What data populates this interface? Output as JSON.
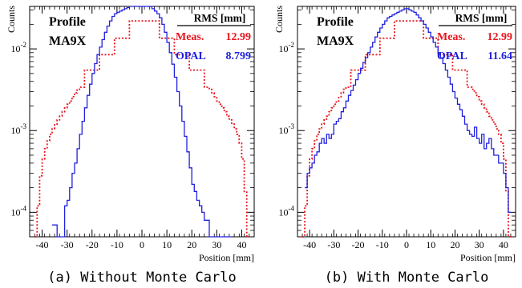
{
  "chart_data": [
    {
      "type": "line",
      "panel_caption": "(a) Without Monte Carlo",
      "profile_title": "Profile",
      "profile_name": "MA9X",
      "ylabel": "Counts",
      "xlabel": "Position [mm]",
      "xlim": [
        -45,
        45
      ],
      "ylim_log10": [
        -4.3,
        -1.48
      ],
      "y_scale": "log",
      "x_ticks": [
        "-40",
        "-30",
        "-20",
        "-10",
        "0",
        "10",
        "20",
        "30",
        "40"
      ],
      "x_tick_values": [
        -40,
        -30,
        -20,
        -10,
        0,
        10,
        20,
        30,
        40
      ],
      "y_ticks": [
        {
          "base": "10",
          "exp": "-2",
          "log10": -2
        },
        {
          "base": "10",
          "exp": "-3",
          "log10": -3
        },
        {
          "base": "10",
          "exp": "-4",
          "log10": -4
        }
      ],
      "legend": {
        "header": "RMS [mm]",
        "entries": [
          {
            "name": "Meas.",
            "value": "12.99",
            "color": "#e8141c"
          },
          {
            "name": "OPAL",
            "value": "8.799",
            "color": "#2020e0"
          }
        ]
      },
      "series": [
        {
          "name": "Meas.",
          "color": "#e8141c",
          "style": "dotted-step",
          "x": [
            -42.5,
            -41.5,
            -40.5,
            -39.5,
            -38.5,
            -37.5,
            -36.5,
            -35.5,
            -34.5,
            -33.5,
            -32.5,
            -31.5,
            -30.5,
            -29.5,
            -28.5,
            -27.5,
            -26.5,
            -25.5,
            -24.5,
            -23.5,
            -22.5,
            -21.5,
            -20.5,
            -19.5,
            -18.5,
            -17.5,
            -16.5,
            -15.5,
            -14.5,
            -13.5,
            -12.5,
            -11.5,
            -10.5,
            -9.5,
            -8.5,
            -7.5,
            -6.5,
            -5.5,
            -4.5,
            -3.5,
            -2.5,
            -1.5,
            -0.5,
            0.5,
            1.5,
            2.5,
            3.5,
            4.5,
            5.5,
            6.5,
            7.5,
            8.5,
            9.5,
            10.5,
            11.5,
            12.5,
            13.5,
            14.5,
            15.5,
            16.5,
            17.5,
            18.5,
            19.5,
            20.5,
            21.5,
            22.5,
            23.5,
            24.5,
            25.5,
            26.5,
            27.5,
            28.5,
            29.5,
            30.5,
            31.5,
            32.5,
            33.5,
            34.5,
            35.5,
            36.5,
            37.5,
            38.5,
            39.5,
            40.5,
            41.5,
            42.5
          ],
          "y": [
            5e-05,
            0.00012,
            0.00028,
            0.00045,
            0.0006,
            0.00075,
            0.0009,
            0.00105,
            0.0012,
            0.00135,
            0.0015,
            0.0017,
            0.0019,
            0.0021,
            0.0023,
            0.0026,
            0.0029,
            0.0032,
            0.0034,
            0.0034,
            0.0055,
            0.0055,
            0.0055,
            0.0055,
            0.0055,
            0.0055,
            0.0085,
            0.0085,
            0.0085,
            0.0085,
            0.0085,
            0.0085,
            0.0135,
            0.0135,
            0.0135,
            0.0135,
            0.0135,
            0.0135,
            0.022,
            0.022,
            0.022,
            0.022,
            0.022,
            0.022,
            0.022,
            0.022,
            0.022,
            0.022,
            0.022,
            0.022,
            0.0135,
            0.0135,
            0.0135,
            0.0135,
            0.0135,
            0.0135,
            0.0085,
            0.0085,
            0.0085,
            0.0085,
            0.0085,
            0.0085,
            0.0055,
            0.0055,
            0.0055,
            0.0055,
            0.0055,
            0.0055,
            0.0034,
            0.0034,
            0.0032,
            0.0029,
            0.0026,
            0.0023,
            0.0021,
            0.0019,
            0.0017,
            0.0015,
            0.00135,
            0.0012,
            0.00105,
            0.0009,
            0.0007,
            0.00045,
            0.00018,
            5e-05
          ]
        },
        {
          "name": "OPAL",
          "color": "#2020e0",
          "style": "solid-step",
          "x": [
            -35.5,
            -34.5,
            -33.5,
            -32.5,
            -31.5,
            -30.5,
            -29.5,
            -28.5,
            -27.5,
            -26.5,
            -25.5,
            -24.5,
            -23.5,
            -22.5,
            -21.5,
            -20.5,
            -19.5,
            -18.5,
            -17.5,
            -16.5,
            -15.5,
            -14.5,
            -13.5,
            -12.5,
            -11.5,
            -10.5,
            -9.5,
            -8.5,
            -7.5,
            -6.5,
            -5.5,
            -4.5,
            -3.5,
            -2.5,
            -1.5,
            -0.5,
            0.5,
            1.5,
            2.5,
            3.5,
            4.5,
            5.5,
            6.5,
            7.5,
            8.5,
            9.5,
            10.5,
            11.5,
            12.5,
            13.5,
            14.5,
            15.5,
            16.5,
            17.5,
            18.5,
            19.5,
            20.5,
            21.5,
            22.5,
            23.5,
            24.5,
            25.5,
            26.5,
            27.5,
            28.5,
            29.5,
            30.5,
            31.5,
            32.5,
            33.5,
            34.5,
            35.5
          ],
          "y": [
            7e-05,
            7e-05,
            5e-05,
            5e-05,
            5e-05,
            0.00012,
            0.00014,
            0.0002,
            0.0003,
            0.0004,
            0.0006,
            0.0009,
            0.0013,
            0.0019,
            0.0027,
            0.0037,
            0.005,
            0.0066,
            0.0085,
            0.0105,
            0.013,
            0.016,
            0.019,
            0.022,
            0.025,
            0.027,
            0.028,
            0.029,
            0.03,
            0.031,
            0.032,
            0.034,
            0.034,
            0.035,
            0.035,
            0.036,
            0.036,
            0.035,
            0.034,
            0.033,
            0.031,
            0.029,
            0.027,
            0.024,
            0.02,
            0.016,
            0.012,
            0.009,
            0.0065,
            0.0045,
            0.003,
            0.002,
            0.0013,
            0.00085,
            0.00055,
            0.00035,
            0.00022,
            0.00018,
            0.00014,
            0.00012,
            0.0001,
            8e-05,
            8e-05,
            5e-05,
            5e-05,
            5e-05,
            5e-05,
            5e-05,
            5e-05,
            5e-05,
            5e-05,
            5e-05
          ]
        }
      ]
    },
    {
      "type": "line",
      "panel_caption": "(b) With Monte Carlo",
      "profile_title": "Profile",
      "profile_name": "MA9X",
      "ylabel": "Counts",
      "xlabel": "Position [mm]",
      "xlim": [
        -45,
        45
      ],
      "ylim_log10": [
        -4.3,
        -1.48
      ],
      "y_scale": "log",
      "x_ticks": [
        "-40",
        "-30",
        "-20",
        "-10",
        "0",
        "10",
        "20",
        "30",
        "40"
      ],
      "x_tick_values": [
        -40,
        -30,
        -20,
        -10,
        0,
        10,
        20,
        30,
        40
      ],
      "y_ticks": [
        {
          "base": "10",
          "exp": "-2",
          "log10": -2
        },
        {
          "base": "10",
          "exp": "-3",
          "log10": -3
        },
        {
          "base": "10",
          "exp": "-4",
          "log10": -4
        }
      ],
      "legend": {
        "header": "RMS [mm]",
        "entries": [
          {
            "name": "Meas.",
            "value": "12.99",
            "color": "#e8141c"
          },
          {
            "name": "OPAL",
            "value": "11.64",
            "color": "#2020e0"
          }
        ]
      },
      "series": [
        {
          "name": "Meas.",
          "color": "#e8141c",
          "style": "dotted-step",
          "x": [
            -42.5,
            -41.5,
            -40.5,
            -39.5,
            -38.5,
            -37.5,
            -36.5,
            -35.5,
            -34.5,
            -33.5,
            -32.5,
            -31.5,
            -30.5,
            -29.5,
            -28.5,
            -27.5,
            -26.5,
            -25.5,
            -24.5,
            -23.5,
            -22.5,
            -21.5,
            -20.5,
            -19.5,
            -18.5,
            -17.5,
            -16.5,
            -15.5,
            -14.5,
            -13.5,
            -12.5,
            -11.5,
            -10.5,
            -9.5,
            -8.5,
            -7.5,
            -6.5,
            -5.5,
            -4.5,
            -3.5,
            -2.5,
            -1.5,
            -0.5,
            0.5,
            1.5,
            2.5,
            3.5,
            4.5,
            5.5,
            6.5,
            7.5,
            8.5,
            9.5,
            10.5,
            11.5,
            12.5,
            13.5,
            14.5,
            15.5,
            16.5,
            17.5,
            18.5,
            19.5,
            20.5,
            21.5,
            22.5,
            23.5,
            24.5,
            25.5,
            26.5,
            27.5,
            28.5,
            29.5,
            30.5,
            31.5,
            32.5,
            33.5,
            34.5,
            35.5,
            36.5,
            37.5,
            38.5,
            39.5,
            40.5,
            41.5,
            42.5
          ],
          "y": [
            5e-05,
            0.00012,
            0.00028,
            0.00045,
            0.0006,
            0.00075,
            0.0009,
            0.00105,
            0.0012,
            0.00135,
            0.0015,
            0.0017,
            0.0019,
            0.0021,
            0.0023,
            0.0026,
            0.0029,
            0.0032,
            0.0034,
            0.0034,
            0.0055,
            0.0055,
            0.0055,
            0.0055,
            0.0055,
            0.0055,
            0.0085,
            0.0085,
            0.0085,
            0.0085,
            0.0085,
            0.0085,
            0.0135,
            0.0135,
            0.0135,
            0.0135,
            0.0135,
            0.0135,
            0.022,
            0.022,
            0.022,
            0.022,
            0.022,
            0.022,
            0.022,
            0.022,
            0.022,
            0.022,
            0.022,
            0.022,
            0.0135,
            0.0135,
            0.0135,
            0.0135,
            0.0135,
            0.0135,
            0.0085,
            0.0085,
            0.0085,
            0.0085,
            0.0085,
            0.0085,
            0.0055,
            0.0055,
            0.0055,
            0.0055,
            0.0055,
            0.0055,
            0.0034,
            0.0034,
            0.0032,
            0.0029,
            0.0026,
            0.0023,
            0.0021,
            0.0019,
            0.0017,
            0.0015,
            0.00135,
            0.0012,
            0.00105,
            0.0009,
            0.0007,
            0.00045,
            0.00018,
            5e-05
          ]
        },
        {
          "name": "OPAL",
          "color": "#2020e0",
          "style": "solid-step",
          "x": [
            -41.5,
            -40.5,
            -39.5,
            -38.5,
            -37.5,
            -36.5,
            -35.5,
            -34.5,
            -33.5,
            -32.5,
            -31.5,
            -30.5,
            -29.5,
            -28.5,
            -27.5,
            -26.5,
            -25.5,
            -24.5,
            -23.5,
            -22.5,
            -21.5,
            -20.5,
            -19.5,
            -18.5,
            -17.5,
            -16.5,
            -15.5,
            -14.5,
            -13.5,
            -12.5,
            -11.5,
            -10.5,
            -9.5,
            -8.5,
            -7.5,
            -6.5,
            -5.5,
            -4.5,
            -3.5,
            -2.5,
            -1.5,
            -0.5,
            0.5,
            1.5,
            2.5,
            3.5,
            4.5,
            5.5,
            6.5,
            7.5,
            8.5,
            9.5,
            10.5,
            11.5,
            12.5,
            13.5,
            14.5,
            15.5,
            16.5,
            17.5,
            18.5,
            19.5,
            20.5,
            21.5,
            22.5,
            23.5,
            24.5,
            25.5,
            26.5,
            27.5,
            28.5,
            29.5,
            30.5,
            31.5,
            32.5,
            33.5,
            34.5,
            35.5,
            36.5,
            37.5,
            38.5,
            39.5,
            40.5,
            41.5,
            42.5
          ],
          "y": [
            0.0002,
            0.0003,
            0.00035,
            0.0004,
            0.0005,
            0.00055,
            0.0007,
            0.0008,
            0.0007,
            0.0009,
            0.0008,
            0.0009,
            0.0012,
            0.0013,
            0.0014,
            0.0017,
            0.0019,
            0.0023,
            0.0027,
            0.0031,
            0.0036,
            0.0042,
            0.005,
            0.0058,
            0.0068,
            0.0078,
            0.009,
            0.0105,
            0.012,
            0.014,
            0.016,
            0.018,
            0.02,
            0.022,
            0.024,
            0.025,
            0.026,
            0.027,
            0.028,
            0.029,
            0.03,
            0.031,
            0.031,
            0.03,
            0.029,
            0.028,
            0.026,
            0.024,
            0.022,
            0.02,
            0.018,
            0.016,
            0.014,
            0.012,
            0.0105,
            0.009,
            0.0078,
            0.0066,
            0.0055,
            0.0045,
            0.0037,
            0.003,
            0.0025,
            0.0021,
            0.0018,
            0.0015,
            0.0012,
            0.001,
            0.0009,
            0.00085,
            0.0011,
            0.0008,
            0.0007,
            0.0009,
            0.0006,
            0.0007,
            0.0008,
            0.0006,
            0.0005,
            0.0005,
            0.0004,
            0.0004,
            0.0003,
            0.0002,
            0.0001
          ]
        }
      ]
    }
  ]
}
